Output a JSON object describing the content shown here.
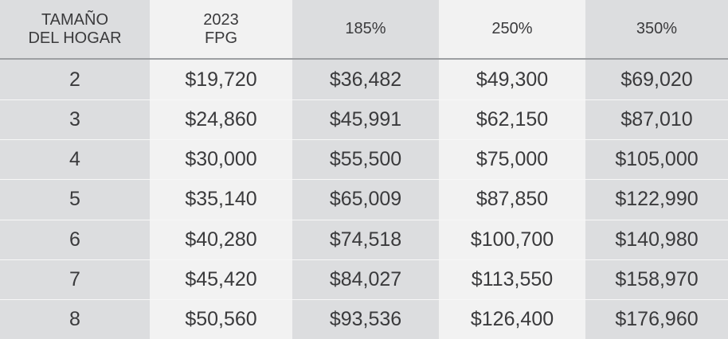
{
  "table": {
    "header": [
      [
        "TAMAÑO",
        "DEL HOGAR"
      ],
      [
        "2023",
        "FPG"
      ],
      [
        "185%"
      ],
      [
        "250%"
      ],
      [
        "350%"
      ]
    ],
    "rows": [
      [
        "2",
        "$19,720",
        "$36,482",
        "$49,300",
        "$69,020"
      ],
      [
        "3",
        "$24,860",
        "$45,991",
        "$62,150",
        "$87,010"
      ],
      [
        "4",
        "$30,000",
        "$55,500",
        "$75,000",
        "$105,000"
      ],
      [
        "5",
        "$35,140",
        "$65,009",
        "$87,850",
        "$122,990"
      ],
      [
        "6",
        "$40,280",
        "$74,518",
        "$100,700",
        "$140,980"
      ],
      [
        "7",
        "$45,420",
        "$84,027",
        "$113,550",
        "$158,970"
      ],
      [
        "8",
        "$50,560",
        "$93,536",
        "$126,400",
        "$176,960"
      ]
    ]
  }
}
